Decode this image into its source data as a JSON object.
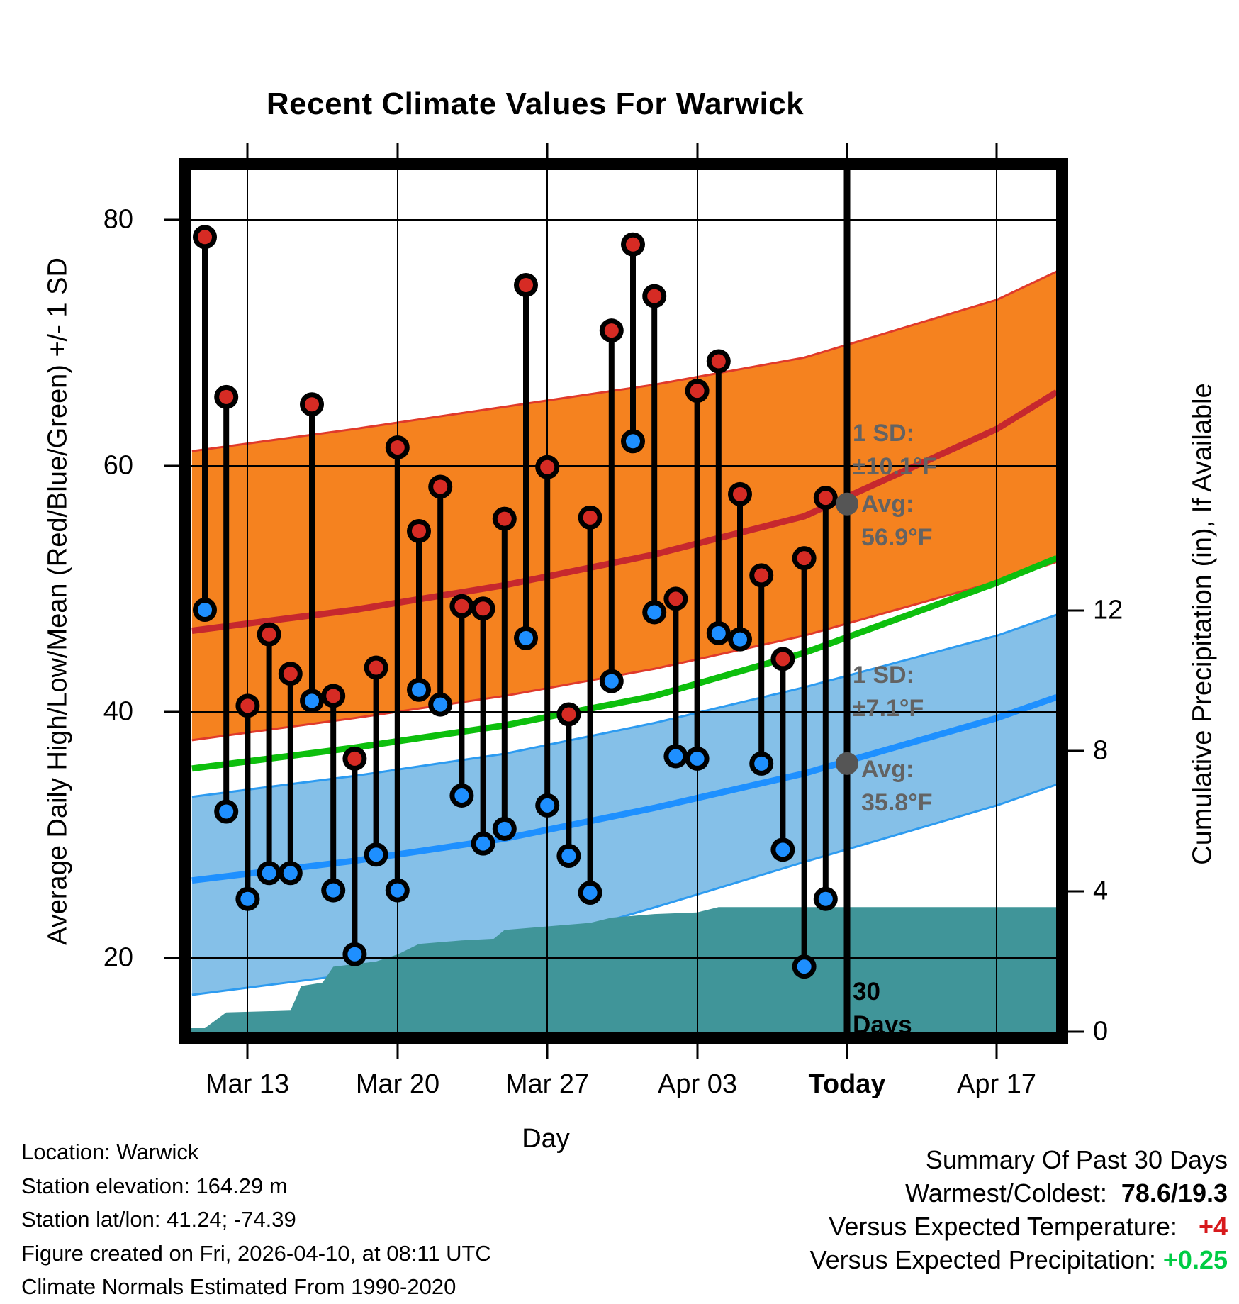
{
  "title": "Recent Climate Values For Warwick",
  "axes": {
    "left_label": "Average Daily High/Low/Mean (Red/Blue/Green) +/- 1 SD",
    "right_label": "Cumulative Precipitation (in), If Available",
    "x_label": "Day",
    "left_ticks": [
      "80",
      "60",
      "40",
      "20"
    ],
    "right_ticks": [
      "12",
      "8",
      "4",
      "0"
    ],
    "x_ticks": [
      "Mar 13",
      "Mar 20",
      "Mar 27",
      "Apr 03",
      "Today",
      "Apr 17"
    ]
  },
  "annotations": {
    "sd_high_label": "1 SD:",
    "sd_high_value": "±10.1°F",
    "avg_high_label": "Avg:",
    "avg_high_value": "56.9°F",
    "sd_low_label": "1 SD:",
    "sd_low_value": "±7.1°F",
    "avg_low_label": "Avg:",
    "avg_low_value": "35.8°F",
    "window_line1": "30",
    "window_line2": "Days"
  },
  "footer": {
    "location": "Location: Warwick",
    "elevation": "Station elevation: 164.29 m",
    "latlon": "Station lat/lon: 41.24; -74.39",
    "created": "Figure created on Fri, 2026-04-10, at 08:11 UTC",
    "normals": "Climate Normals Estimated From 1990-2020"
  },
  "summary": {
    "heading": "Summary Of Past 30 Days",
    "warmcold_label": "Warmest/Coldest:",
    "warmcold_value": "78.6/19.3",
    "vs_temp_label": "Versus Expected Temperature:",
    "vs_temp_value": "+4",
    "vs_precip_label": "Versus Expected Precipitation:",
    "vs_precip_value": "+0.25"
  },
  "chart_data": {
    "type": "line",
    "title": "Recent Climate Values For Warwick",
    "xlabel": "Day",
    "ylabel_left": "Average Daily High/Low/Mean (Red/Blue/Green) +/- 1 SD",
    "ylabel_right": "Cumulative Precipitation (in), If Available",
    "ylim_left_F": [
      13.5,
      84
    ],
    "ylim_right_in": [
      0,
      24.5
    ],
    "x_tick_labels": [
      "Mar 13",
      "Mar 20",
      "Mar 27",
      "Apr 03",
      "Today",
      "Apr 17"
    ],
    "grid": true,
    "today": "Apr 10",
    "daily": [
      {
        "date": "Mar 11",
        "high": 78.6,
        "low": 48.3
      },
      {
        "date": "Mar 12",
        "high": 65.6,
        "low": 31.9
      },
      {
        "date": "Mar 13",
        "high": 40.5,
        "low": 24.8
      },
      {
        "date": "Mar 14",
        "high": 46.3,
        "low": 26.9
      },
      {
        "date": "Mar 15",
        "high": 43.1,
        "low": 26.9
      },
      {
        "date": "Mar 16",
        "high": 65.0,
        "low": 40.9
      },
      {
        "date": "Mar 17",
        "high": 41.3,
        "low": 25.5
      },
      {
        "date": "Mar 18",
        "high": 36.2,
        "low": 20.3
      },
      {
        "date": "Mar 19",
        "high": 43.6,
        "low": 28.4
      },
      {
        "date": "Mar 20",
        "high": 61.5,
        "low": 25.5
      },
      {
        "date": "Mar 21",
        "high": 54.7,
        "low": 41.8
      },
      {
        "date": "Mar 22",
        "high": 58.3,
        "low": 40.6
      },
      {
        "date": "Mar 23",
        "high": 48.6,
        "low": 33.2
      },
      {
        "date": "Mar 24",
        "high": 48.4,
        "low": 29.3
      },
      {
        "date": "Mar 25",
        "high": 55.7,
        "low": 30.5
      },
      {
        "date": "Mar 26",
        "high": 74.7,
        "low": 46.0
      },
      {
        "date": "Mar 27",
        "high": 59.9,
        "low": 32.4
      },
      {
        "date": "Mar 28",
        "high": 39.8,
        "low": 28.3
      },
      {
        "date": "Mar 29",
        "high": 55.8,
        "low": 25.3
      },
      {
        "date": "Mar 30",
        "high": 71.0,
        "low": 42.5
      },
      {
        "date": "Mar 31",
        "high": 78.0,
        "low": 62.0
      },
      {
        "date": "Apr 01",
        "high": 73.8,
        "low": 48.1
      },
      {
        "date": "Apr 02",
        "high": 49.2,
        "low": 36.4
      },
      {
        "date": "Apr 03",
        "high": 66.1,
        "low": 36.2
      },
      {
        "date": "Apr 04",
        "high": 68.5,
        "low": 46.4
      },
      {
        "date": "Apr 05",
        "high": 57.7,
        "low": 45.9
      },
      {
        "date": "Apr 06",
        "high": 51.1,
        "low": 35.8
      },
      {
        "date": "Apr 07",
        "high": 44.3,
        "low": 28.8
      },
      {
        "date": "Apr 08",
        "high": 52.5,
        "low": 19.3
      },
      {
        "date": "Apr 09",
        "high": 57.4,
        "low": 24.8
      }
    ],
    "normals": {
      "comment": "climatological bands, anchored at day indices (0 = Mar 11)",
      "day_idx": [
        -0.6,
        7,
        14,
        21,
        28,
        37,
        39.8
      ],
      "high_plus_sd": [
        61.2,
        63.0,
        64.8,
        66.6,
        68.8,
        73.5,
        75.8
      ],
      "avg_high": [
        46.6,
        48.3,
        50.3,
        52.8,
        55.9,
        63.0,
        66.0
      ],
      "high_minus_sd": [
        37.7,
        39.5,
        41.3,
        43.5,
        46.2,
        50.6,
        52.2
      ],
      "mean": [
        35.4,
        37.1,
        38.9,
        41.3,
        44.8,
        50.5,
        52.5
      ],
      "low_plus_sd": [
        33.1,
        34.8,
        36.6,
        39.1,
        42.0,
        46.2,
        47.9
      ],
      "avg_low": [
        26.3,
        27.9,
        29.7,
        32.2,
        35.0,
        39.5,
        41.2
      ],
      "low_minus_sd": [
        17.0,
        18.7,
        20.6,
        24.1,
        27.8,
        32.4,
        34.1
      ]
    },
    "today_markers": {
      "avg_high_F": 56.9,
      "sd_high_F": 10.1,
      "avg_low_F": 35.8,
      "sd_low_F": 7.1,
      "window_days": 30
    },
    "cumulative_precip_in": [
      [
        0,
        0.1
      ],
      [
        1,
        0.55
      ],
      [
        4,
        0.6
      ],
      [
        4.5,
        1.3
      ],
      [
        5.5,
        1.4
      ],
      [
        6,
        1.85
      ],
      [
        8,
        2.0
      ],
      [
        9,
        2.2
      ],
      [
        10,
        2.5
      ],
      [
        12,
        2.6
      ],
      [
        13.5,
        2.65
      ],
      [
        14,
        2.9
      ],
      [
        16,
        3.0
      ],
      [
        18,
        3.1
      ],
      [
        19,
        3.25
      ],
      [
        21,
        3.35
      ],
      [
        23,
        3.4
      ],
      [
        24,
        3.55
      ],
      [
        39.7,
        3.55
      ]
    ],
    "colors": {
      "high_band": "#F5821F",
      "high_band_edge": "#E03A2B",
      "avg_high_line": "#C6282E",
      "mean_line": "#0DBF0D",
      "low_band": "#85C0E8",
      "low_band_edge": "#2D9BF0",
      "avg_low_line": "#1E90FF",
      "precip_fill": "#409599",
      "high_dot": "#D62B24",
      "low_dot": "#1E8FFF",
      "marker_gray": "#555555"
    }
  }
}
